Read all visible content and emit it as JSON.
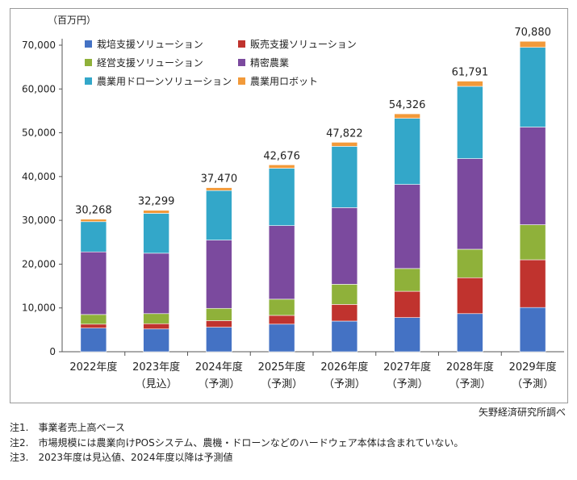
{
  "chart_data": {
    "type": "bar",
    "stacked": true,
    "unit_label": "（百万円）",
    "categories": [
      "2022年度",
      "2023年度",
      "2024年度",
      "2025年度",
      "2026年度",
      "2027年度",
      "2028年度",
      "2029年度"
    ],
    "category_sublabels": [
      "",
      "（見込）",
      "（予測）",
      "（予測）",
      "（予測）",
      "（予測）",
      "（予測）",
      "（予測）"
    ],
    "totals": [
      "30,268",
      "32,299",
      "37,470",
      "42,676",
      "47,822",
      "54,326",
      "61,791",
      "70,880"
    ],
    "ylim": [
      0,
      70000
    ],
    "yticks": [
      0,
      10000,
      20000,
      30000,
      40000,
      50000,
      60000,
      70000
    ],
    "ytick_labels": [
      "0",
      "10,000",
      "20,000",
      "30,000",
      "40,000",
      "50,000",
      "60,000",
      "70,000"
    ],
    "grid": false,
    "legend_position": "top-left",
    "series": [
      {
        "name": "栽培支援ソリューション",
        "color": "#4472c4",
        "values": [
          5400,
          5200,
          5600,
          6300,
          7000,
          7800,
          8700,
          10100
        ]
      },
      {
        "name": "販売支援ソリューション",
        "color": "#c0332e",
        "values": [
          900,
          1200,
          1500,
          2000,
          3800,
          6000,
          8200,
          10900
        ]
      },
      {
        "name": "経営支援ソリューション",
        "color": "#8fb13a",
        "values": [
          2200,
          2300,
          2800,
          3700,
          4600,
          5200,
          6500,
          8000
        ]
      },
      {
        "name": "精密農業",
        "color": "#7b4a9e",
        "values": [
          14300,
          13800,
          15600,
          16800,
          17500,
          19200,
          20700,
          22300
        ]
      },
      {
        "name": "農業用ドローンソリューション",
        "color": "#33a7c9",
        "values": [
          6900,
          9100,
          11300,
          13100,
          14000,
          15100,
          16500,
          18200
        ]
      },
      {
        "name": "農業用ロボット",
        "color": "#f29a3a",
        "values": [
          568,
          699,
          670,
          776,
          922,
          1026,
          1191,
          1380
        ]
      }
    ]
  },
  "source": "矢野経済研究所調べ",
  "notes": [
    "注1.　事業者売上高ベース",
    "注2.　市場規模には農業向けPOSシステム、農機・ドローンなどのハードウェア本体は含まれていない。",
    "注3.　2023年度は見込値、2024年度以降は予測値"
  ]
}
